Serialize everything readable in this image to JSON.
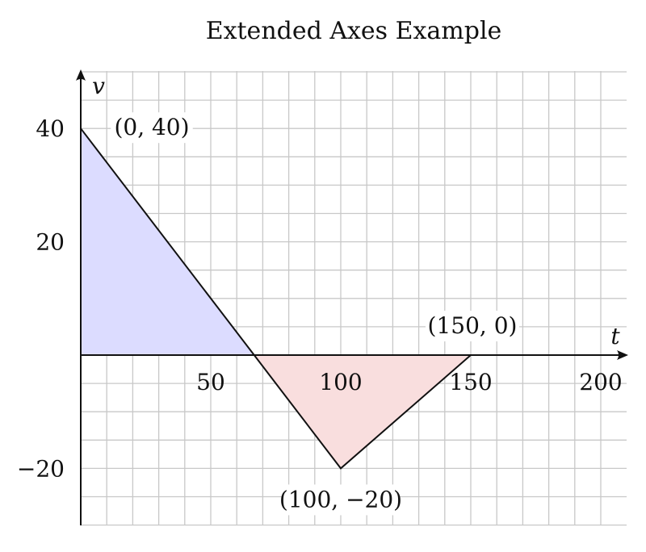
{
  "chart_data": {
    "type": "area",
    "title": "Extended Axes Example",
    "xlabel": "t",
    "ylabel": "v",
    "xlim": [
      0,
      210
    ],
    "ylim": [
      -30,
      50
    ],
    "grid": true,
    "x_ticks": [
      50,
      100,
      150,
      200
    ],
    "x_tick_labels": [
      "50",
      "100",
      "150",
      "200"
    ],
    "y_ticks": [
      40,
      20,
      -20
    ],
    "y_tick_labels": [
      "40",
      "20",
      "−20"
    ],
    "series": [
      {
        "x": [
          0,
          66.7,
          100,
          150
        ],
        "y": [
          40,
          0,
          -20,
          0
        ]
      }
    ],
    "fills": [
      {
        "points": [
          [
            0,
            0
          ],
          [
            0,
            40
          ],
          [
            66.7,
            0
          ]
        ],
        "color": "#dcdcff"
      },
      {
        "points": [
          [
            66.7,
            0
          ],
          [
            100,
            -20
          ],
          [
            150,
            0
          ]
        ],
        "color": "#f9dede"
      }
    ],
    "annotations": [
      {
        "text": "(0, 40)",
        "x": 0,
        "y": 40
      },
      {
        "text": "(150, 0)",
        "x": 150,
        "y": 0
      },
      {
        "text": "(100, −20)",
        "x": 100,
        "y": -20
      }
    ],
    "colors": {
      "line": "#111111",
      "grid": "#c8c8c8",
      "tick_100": "#888888"
    }
  }
}
